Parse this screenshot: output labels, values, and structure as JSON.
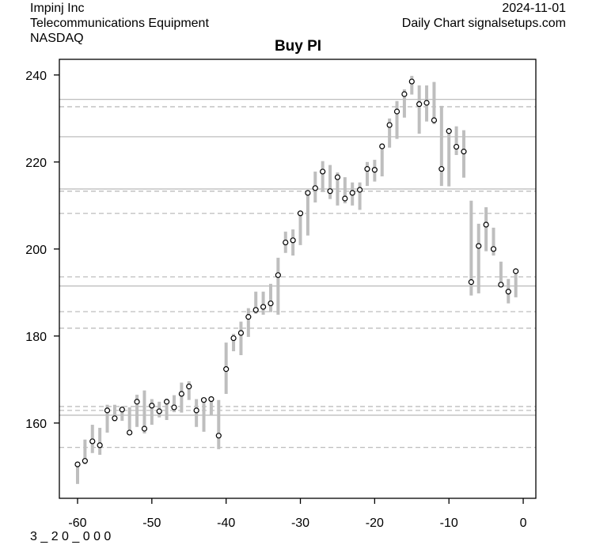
{
  "header": {
    "company": "Impinj Inc",
    "industry": "Telecommunications Equipment",
    "exchange": "NASDAQ",
    "date": "2024-11-01",
    "source": "Daily Chart signalsetups.com"
  },
  "footer": {
    "code": "3 _ 2 0 _ 0 0 0"
  },
  "chart_data": {
    "type": "line",
    "title": "Buy PI",
    "xlabel": "",
    "ylabel": "",
    "xlim": [
      -62.45,
      1.7
    ],
    "ylim": [
      142.7,
      243.6
    ],
    "x_ticks": [
      -60,
      -50,
      -40,
      -30,
      -20,
      -10,
      0
    ],
    "y_ticks": [
      160,
      180,
      200,
      220,
      240
    ],
    "grid": false,
    "colors": {
      "range_bar": "#bebebe",
      "level_line": "#bebebe",
      "close_marker": "#000000"
    },
    "x": [
      -60,
      -59,
      -58,
      -57,
      -56,
      -55,
      -54,
      -53,
      -52,
      -51,
      -50,
      -49,
      -48,
      -47,
      -46,
      -45,
      -44,
      -43,
      -42,
      -41,
      -40,
      -39,
      -38,
      -37,
      -36,
      -35,
      -34,
      -33,
      -32,
      -31,
      -30,
      -29,
      -28,
      -27,
      -26,
      -25,
      -24,
      -23,
      -22,
      -21,
      -20,
      -19,
      -18,
      -17,
      -16,
      -15,
      -14,
      -13,
      -12,
      -11,
      -10,
      -9,
      -8,
      -7,
      -6,
      -5,
      -4,
      -3,
      -2,
      -1
    ],
    "close": [
      150.5,
      151.3,
      155.8,
      154.9,
      162.9,
      161.1,
      163.1,
      157.8,
      164.9,
      158.7,
      164.0,
      162.7,
      164.9,
      163.6,
      166.7,
      168.4,
      162.9,
      165.3,
      165.5,
      157.1,
      172.4,
      179.5,
      180.7,
      184.4,
      186.0,
      186.7,
      187.5,
      194.0,
      201.5,
      202.0,
      208.2,
      212.9,
      214.0,
      217.8,
      213.3,
      216.5,
      211.6,
      212.9,
      213.6,
      218.4,
      218.2,
      223.6,
      228.5,
      231.6,
      235.6,
      238.5,
      233.3,
      233.6,
      229.6,
      218.4,
      227.1,
      223.5,
      222.4,
      192.4,
      200.7,
      205.6,
      200.0,
      191.8,
      190.2,
      194.9
    ],
    "high": [
      151.0,
      156.2,
      159.6,
      158.9,
      164.2,
      164.2,
      163.8,
      163.6,
      166.5,
      167.5,
      165.5,
      164.9,
      165.6,
      166.4,
      169.3,
      169.6,
      165.5,
      165.6,
      165.5,
      165.3,
      178.5,
      180.5,
      183.3,
      186.4,
      190.2,
      190.2,
      192.0,
      198.0,
      204.0,
      204.5,
      208.2,
      212.9,
      217.8,
      220.2,
      219.3,
      217.6,
      216.5,
      215.3,
      215.3,
      220.0,
      220.5,
      224.2,
      230.0,
      234.0,
      236.7,
      239.8,
      237.6,
      237.6,
      238.4,
      232.9,
      227.8,
      228.2,
      227.3,
      211.1,
      205.8,
      209.6,
      204.9,
      197.1,
      193.1,
      194.9
    ],
    "low": [
      146.0,
      150.5,
      153.1,
      152.7,
      157.8,
      160.4,
      160.5,
      157.3,
      159.1,
      157.6,
      159.6,
      161.3,
      160.7,
      162.5,
      162.4,
      165.3,
      159.1,
      158.0,
      161.8,
      154.0,
      166.7,
      176.5,
      175.6,
      179.8,
      185.1,
      184.9,
      185.5,
      184.9,
      199.1,
      198.5,
      200.9,
      203.1,
      210.7,
      213.1,
      211.5,
      210.0,
      210.5,
      210.0,
      209.0,
      214.5,
      215.5,
      216.7,
      223.3,
      225.3,
      230.2,
      235.5,
      226.5,
      229.3,
      228.7,
      214.5,
      214.4,
      221.6,
      216.4,
      189.3,
      189.8,
      199.5,
      198.5,
      191.5,
      187.5,
      188.9
    ],
    "solid_levels": [
      234.4,
      225.8,
      213.8,
      191.5,
      161.8
    ],
    "dashed_levels": [
      232.7,
      213.3,
      208.2,
      193.6,
      185.6,
      181.8,
      163.8,
      162.9,
      154.4
    ]
  }
}
